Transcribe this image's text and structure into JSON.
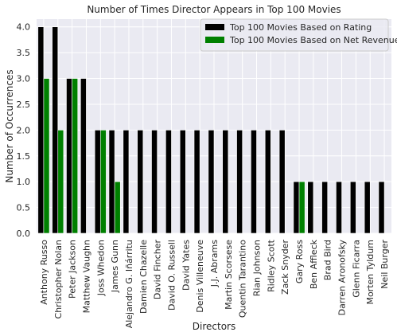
{
  "chart_data": {
    "type": "bar",
    "title": "Number of Times Director Appears in Top 100 Movies",
    "xlabel": "Directors",
    "ylabel": "Number of Occurrences",
    "ylim": [
      0,
      4.15
    ],
    "yticks": [
      "0.0",
      "0.5",
      "1.0",
      "1.5",
      "2.0",
      "2.5",
      "3.0",
      "3.5",
      "4.0"
    ],
    "grid": true,
    "legend_position": "top-right",
    "categories": [
      "Anthony Russo",
      "Christopher Nolan",
      "Peter Jackson",
      "Matthew Vaughn",
      "Joss Whedon",
      "James Gunn",
      "Alejandro G. Iñárritu",
      "Damien Chazelle",
      "David Fincher",
      "David O. Russell",
      "David Yates",
      "Denis Villeneuve",
      "J.J. Abrams",
      "Martin Scorsese",
      "Quentin Tarantino",
      "Rian Johnson",
      "Ridley Scott",
      "Zack Snyder",
      "Gary Ross",
      "Ben Affleck",
      "Brad Bird",
      "Darren Aronofsky",
      "Glenn Ficarra",
      "Morten Tyldum",
      "Neil Burger"
    ],
    "series": [
      {
        "name": "Top 100 Movies Based on Rating",
        "color": "#000000",
        "values": [
          4,
          4,
          3,
          3,
          2,
          2,
          2,
          2,
          2,
          2,
          2,
          2,
          2,
          2,
          2,
          2,
          2,
          2,
          1,
          1,
          1,
          1,
          1,
          1,
          1
        ]
      },
      {
        "name": "Top 100 Movies Based on Net Revenue",
        "color": "#008000",
        "values": [
          3,
          2,
          3,
          0,
          2,
          1,
          0,
          0,
          0,
          0,
          0,
          0,
          0,
          0,
          0,
          0,
          0,
          0,
          1,
          0,
          0,
          0,
          0,
          0,
          0
        ]
      }
    ],
    "colors": {
      "plot_background": "#eaeaf2",
      "grid": "#ffffff"
    }
  }
}
